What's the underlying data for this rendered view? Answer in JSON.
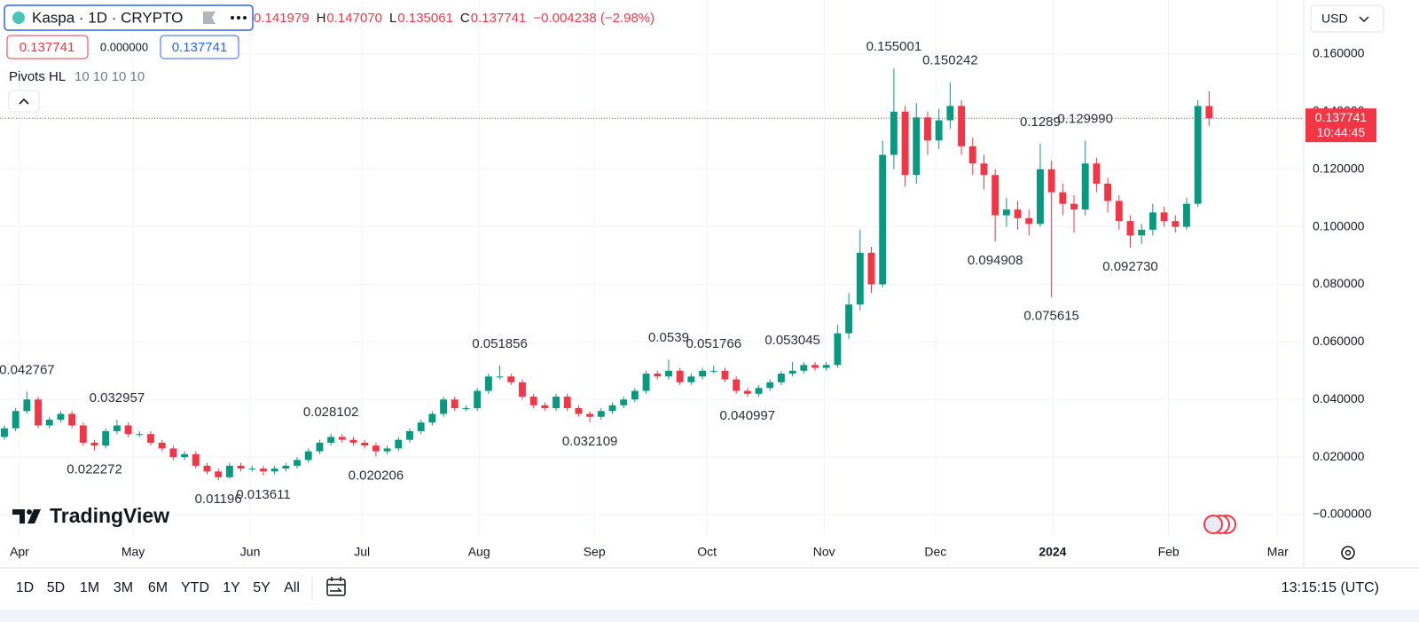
{
  "header": {
    "symbol": "Kaspa · 1D · CRYPTO",
    "ohlc": [
      {
        "value": "0.141979"
      },
      {
        "key": "H",
        "value": "0.147070"
      },
      {
        "key": "L",
        "value": "0.135061"
      },
      {
        "key": "C",
        "value": "0.137741"
      },
      {
        "value": "−0.004238 (−2.98%)"
      }
    ],
    "sell": "0.137741",
    "spread": "0.000000",
    "buy": "0.137741",
    "indicator": "Pivots HL",
    "indicator_params": "10 10 10 10",
    "currency": "USD",
    "logo": "TradingView"
  },
  "toolbar": {
    "ranges": [
      "1D",
      "5D",
      "1M",
      "3M",
      "6M",
      "YTD",
      "1Y",
      "5Y",
      "All"
    ],
    "clock": "13:15:15 (UTC)"
  },
  "chart_data": {
    "type": "candlestick",
    "up_color": "#089981",
    "down_color": "#f23645",
    "grid": true,
    "xlim": [
      -0.39,
      115.4
    ],
    "ylim": [
      -0.0077,
      0.1788
    ],
    "xticks": [
      {
        "value": 1.34,
        "label": "Apr"
      },
      {
        "value": 11.43,
        "label": "May"
      },
      {
        "value": 21.83,
        "label": "Jun"
      },
      {
        "value": 31.76,
        "label": "Jul"
      },
      {
        "value": 42.16,
        "label": "Aug"
      },
      {
        "value": 52.4,
        "label": "Sep"
      },
      {
        "value": 62.4,
        "label": "Oct"
      },
      {
        "value": 72.8,
        "label": "Nov"
      },
      {
        "value": 82.7,
        "label": "Dec"
      },
      {
        "value": 93.1,
        "label": "2024"
      },
      {
        "value": 103.4,
        "label": "Feb"
      },
      {
        "value": 113.1,
        "label": "Mar"
      }
    ],
    "yticks": [
      {
        "value": 0,
        "label": "−0.000000"
      },
      {
        "value": 0.02,
        "label": "0.020000"
      },
      {
        "value": 0.04,
        "label": "0.040000"
      },
      {
        "value": 0.06,
        "label": "0.060000"
      },
      {
        "value": 0.08,
        "label": "0.080000"
      },
      {
        "value": 0.1,
        "label": "0.100000"
      },
      {
        "value": 0.12,
        "label": "0.120000"
      },
      {
        "value": 0.14,
        "label": "0.140000"
      },
      {
        "value": 0.16,
        "label": "0.160000"
      }
    ],
    "open": [
      0.027,
      0.03,
      0.036,
      0.04,
      0.031,
      0.033,
      0.035,
      0.031,
      0.025,
      0.024,
      0.029,
      0.031,
      0.028,
      0.028,
      0.025,
      0.023,
      0.02,
      0.021,
      0.017,
      0.015,
      0.013,
      0.017,
      0.016,
      0.016,
      0.015,
      0.016,
      0.017,
      0.019,
      0.022,
      0.025,
      0.027,
      0.026,
      0.025,
      0.024,
      0.022,
      0.023,
      0.026,
      0.029,
      0.032,
      0.035,
      0.04,
      0.037,
      0.037,
      0.043,
      0.048,
      0.048,
      0.046,
      0.041,
      0.038,
      0.037,
      0.041,
      0.037,
      0.035,
      0.034,
      0.036,
      0.038,
      0.04,
      0.043,
      0.049,
      0.048,
      0.05,
      0.046,
      0.048,
      0.05,
      0.05,
      0.047,
      0.043,
      0.042,
      0.044,
      0.046,
      0.049,
      0.05,
      0.052,
      0.051,
      0.052,
      0.063,
      0.073,
      0.091,
      0.08,
      0.125,
      0.14,
      0.118,
      0.138,
      0.13,
      0.137,
      0.142,
      0.128,
      0.122,
      0.118,
      0.104,
      0.106,
      0.103,
      0.101,
      0.12,
      0.112,
      0.108,
      0.106,
      0.122,
      0.115,
      0.109,
      0.102,
      0.097,
      0.099,
      0.105,
      0.102,
      0.1,
      0.108,
      0.141979
    ],
    "high": [
      0.031,
      0.037,
      0.042767,
      0.041,
      0.034,
      0.036,
      0.036,
      0.032,
      0.026,
      0.03,
      0.032957,
      0.032,
      0.029,
      0.029,
      0.026,
      0.024,
      0.022,
      0.022,
      0.018,
      0.016,
      0.018,
      0.018,
      0.017,
      0.017,
      0.017,
      0.018,
      0.02,
      0.023,
      0.026,
      0.028102,
      0.028,
      0.027,
      0.026,
      0.025,
      0.024,
      0.027,
      0.03,
      0.033,
      0.036,
      0.041,
      0.041,
      0.038,
      0.044,
      0.049,
      0.051856,
      0.049,
      0.047,
      0.042,
      0.039,
      0.042,
      0.042,
      0.038,
      0.036,
      0.037,
      0.039,
      0.041,
      0.044,
      0.05,
      0.05,
      0.0539,
      0.051,
      0.049,
      0.051,
      0.051766,
      0.051,
      0.048,
      0.044,
      0.045,
      0.047,
      0.05,
      0.053045,
      0.053,
      0.053,
      0.053,
      0.066,
      0.077,
      0.099,
      0.093,
      0.13,
      0.155001,
      0.142,
      0.143,
      0.14,
      0.141,
      0.150242,
      0.144,
      0.131,
      0.125,
      0.12,
      0.11,
      0.109,
      0.106,
      0.1289,
      0.123,
      0.115,
      0.111,
      0.12999,
      0.124,
      0.117,
      0.111,
      0.104,
      0.101,
      0.108,
      0.107,
      0.104,
      0.11,
      0.144,
      0.14707
    ],
    "low": [
      0.026,
      0.029,
      0.035,
      0.03,
      0.03,
      0.032,
      0.03,
      0.024,
      0.022272,
      0.023,
      0.028,
      0.027,
      0.027,
      0.024,
      0.022,
      0.019,
      0.019,
      0.016,
      0.014,
      0.01196,
      0.0125,
      0.015,
      0.015,
      0.013611,
      0.014,
      0.015,
      0.016,
      0.018,
      0.021,
      0.024,
      0.025,
      0.024,
      0.023,
      0.020206,
      0.021,
      0.022,
      0.025,
      0.028,
      0.031,
      0.034,
      0.036,
      0.036,
      0.036,
      0.042,
      0.047,
      0.045,
      0.04,
      0.037,
      0.036,
      0.036,
      0.036,
      0.034,
      0.032109,
      0.033,
      0.035,
      0.037,
      0.039,
      0.042,
      0.047,
      0.047,
      0.045,
      0.045,
      0.047,
      0.049,
      0.046,
      0.042,
      0.040997,
      0.041,
      0.043,
      0.045,
      0.048,
      0.049,
      0.05,
      0.05,
      0.051,
      0.061,
      0.071,
      0.077,
      0.079,
      0.12,
      0.114,
      0.115,
      0.125,
      0.127,
      0.134,
      0.125,
      0.118,
      0.113,
      0.094908,
      0.1,
      0.099,
      0.097,
      0.1,
      0.075615,
      0.104,
      0.098,
      0.104,
      0.112,
      0.105,
      0.099,
      0.09273,
      0.094,
      0.097,
      0.1,
      0.098,
      0.099,
      0.107,
      0.135061
    ],
    "close": [
      0.03,
      0.036,
      0.04,
      0.031,
      0.033,
      0.035,
      0.031,
      0.025,
      0.024,
      0.029,
      0.031,
      0.028,
      0.028,
      0.025,
      0.023,
      0.02,
      0.021,
      0.017,
      0.015,
      0.013,
      0.017,
      0.016,
      0.016,
      0.015,
      0.016,
      0.017,
      0.019,
      0.022,
      0.025,
      0.027,
      0.026,
      0.025,
      0.024,
      0.022,
      0.023,
      0.026,
      0.029,
      0.032,
      0.035,
      0.04,
      0.037,
      0.037,
      0.043,
      0.048,
      0.048,
      0.046,
      0.041,
      0.038,
      0.037,
      0.041,
      0.037,
      0.035,
      0.034,
      0.036,
      0.038,
      0.04,
      0.043,
      0.049,
      0.048,
      0.05,
      0.046,
      0.048,
      0.05,
      0.05,
      0.047,
      0.043,
      0.042,
      0.044,
      0.046,
      0.049,
      0.05,
      0.052,
      0.051,
      0.052,
      0.063,
      0.073,
      0.091,
      0.08,
      0.125,
      0.14,
      0.118,
      0.138,
      0.13,
      0.137,
      0.142,
      0.128,
      0.122,
      0.118,
      0.104,
      0.106,
      0.103,
      0.101,
      0.12,
      0.112,
      0.108,
      0.106,
      0.122,
      0.115,
      0.109,
      0.102,
      0.097,
      0.099,
      0.105,
      0.102,
      0.1,
      0.108,
      0.141979,
      0.137741
    ],
    "pivot_labels": [
      "0.042767",
      "0.022272",
      "0.032957",
      "0.01196",
      "0.013611",
      "0.028102",
      "0.020206",
      "0.051856",
      "0.032109",
      "0.0539",
      "0.051766",
      "0.040997",
      "0.053045",
      "0.155001",
      "0.150242",
      "0.094908",
      "0.1289",
      "0.075615",
      "0.129990",
      "0.092730"
    ],
    "price_label": {
      "value": "0.137741",
      "countdown": "10:44:45"
    }
  }
}
